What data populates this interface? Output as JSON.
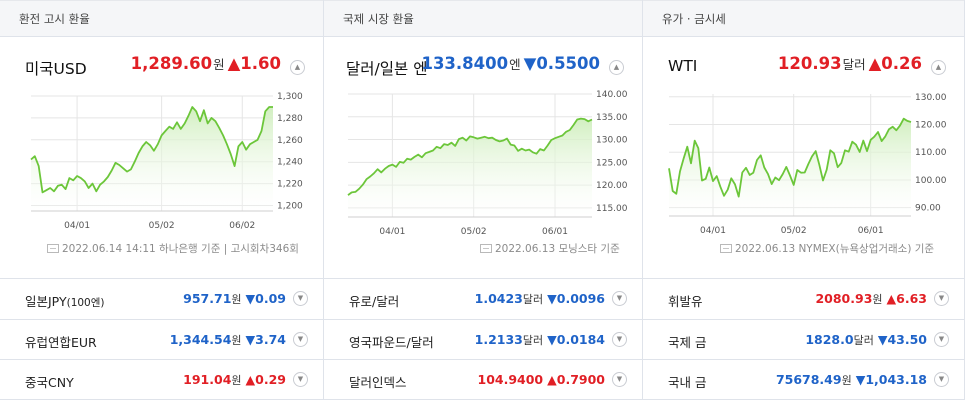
{
  "colors": {
    "up": "#e11f25",
    "down": "#1f63c8",
    "line": "#6cc63a",
    "fill": "#e9f6df",
    "grid": "#e5e5e5"
  },
  "panels": [
    {
      "header": "환전 고시 환율",
      "main": {
        "name": "미국USD",
        "value": "1,289.60",
        "unit": "원",
        "change": "▲1.60",
        "direction": "up"
      },
      "source": "2022.06.14 14:11 하나은행 기준 | 고시회차346회",
      "chart_data": {
        "type": "area",
        "series": [
          {
            "name": "",
            "values": [
              1242,
              1245,
              1236,
              1212,
              1214,
              1216,
              1213,
              1218,
              1219,
              1215,
              1225,
              1223,
              1227,
              1225,
              1222,
              1216,
              1220,
              1213,
              1219,
              1222,
              1226,
              1232,
              1239,
              1237,
              1234,
              1231,
              1233,
              1240,
              1248,
              1254,
              1258,
              1255,
              1250,
              1256,
              1264,
              1268,
              1272,
              1270,
              1276,
              1270,
              1275,
              1282,
              1290,
              1286,
              1277,
              1287,
              1275,
              1280,
              1277,
              1271,
              1264,
              1256,
              1247,
              1236,
              1254,
              1258,
              1251,
              1256,
              1258,
              1260,
              1268,
              1286,
              1290,
              1290
            ]
          }
        ],
        "x_ticks": [
          "04/01",
          "05/02",
          "06/02"
        ],
        "x_tick_index": [
          12,
          34,
          55
        ],
        "y_ticks": [
          "1,300",
          "1,280",
          "1,260",
          "1,240",
          "1,220",
          "1,200"
        ],
        "ylim": [
          1195,
          1300
        ],
        "grid": true
      }
    },
    {
      "header": "국제 시장 환율",
      "main": {
        "name": "달러/일본 엔",
        "value": "133.8400",
        "unit": "엔",
        "change": "▼0.5500",
        "direction": "down"
      },
      "source": "2022.06.13 모닝스타 기준",
      "chart_data": {
        "type": "area",
        "series": [
          {
            "name": "",
            "values": [
              117.8,
              118.4,
              118.5,
              119.2,
              120.1,
              121.3,
              121.9,
              122.6,
              123.5,
              122.8,
              123.6,
              124.2,
              124.5,
              124.0,
              125.1,
              124.9,
              125.8,
              125.6,
              126.2,
              126.7,
              126.1,
              127.0,
              127.3,
              127.6,
              128.4,
              128.1,
              129.0,
              128.8,
              129.3,
              128.6,
              130.1,
              130.4,
              129.8,
              130.7,
              130.5,
              130.2,
              130.4,
              130.6,
              130.3,
              130.4,
              129.9,
              129.6,
              129.8,
              130.2,
              128.9,
              128.7,
              127.5,
              128.0,
              127.6,
              127.8,
              127.2,
              126.9,
              127.9,
              127.6,
              128.7,
              129.9,
              130.3,
              130.6,
              130.9,
              131.7,
              132.1,
              133.2,
              134.4,
              134.6,
              134.5,
              134.0,
              134.4
            ]
          }
        ],
        "x_ticks": [
          "04/01",
          "05/02",
          "06/01"
        ],
        "x_tick_index": [
          12,
          34,
          56
        ],
        "y_ticks": [
          "140.00",
          "135.00",
          "130.00",
          "125.00",
          "120.00",
          "115.00"
        ],
        "ylim": [
          113,
          140
        ],
        "grid": true
      }
    },
    {
      "header": "유가 · 금시세",
      "main": {
        "name": "WTI",
        "value": "120.93",
        "unit": "달러",
        "change": "▲0.26",
        "direction": "up"
      },
      "source": "2022.06.13 NYMEX(뉴욕상업거래소) 기준",
      "chart_data": {
        "type": "area",
        "series": [
          {
            "name": "",
            "values": [
              104.2,
              96.0,
              95.0,
              103.1,
              107.8,
              112.0,
              106.0,
              114.2,
              111.5,
              99.8,
              100.4,
              104.5,
              99.6,
              101.4,
              97.6,
              94.3,
              96.5,
              100.6,
              98.4,
              94.0,
              102.7,
              104.4,
              101.8,
              102.6,
              107.2,
              108.9,
              104.5,
              102.1,
              98.5,
              100.9,
              99.9,
              102.1,
              104.7,
              101.6,
              98.2,
              103.6,
              102.6,
              102.7,
              105.7,
              108.5,
              110.4,
              105.5,
              99.8,
              103.7,
              110.7,
              109.6,
              104.6,
              106.1,
              110.7,
              110.2,
              113.8,
              112.7,
              110.1,
              114.2,
              110.4,
              114.5,
              115.6,
              117.3,
              114.0,
              115.7,
              118.3,
              119.2,
              117.9,
              119.6,
              122.1,
              121.3,
              120.9
            ]
          }
        ],
        "x_ticks": [
          "04/01",
          "05/02",
          "06/01"
        ],
        "x_tick_index": [
          12,
          34,
          55
        ],
        "y_ticks": [
          "130.00",
          "120.00",
          "110.00",
          "100.00",
          "90.00"
        ],
        "ylim": [
          87,
          131
        ],
        "grid": true
      }
    }
  ],
  "rows": [
    [
      {
        "name": "일본JPY",
        "suffix": "(100엔)",
        "value": "957.71",
        "unit": "원",
        "change": "▼0.09",
        "direction": "down"
      },
      {
        "name": "유럽연합EUR",
        "suffix": "",
        "value": "1,344.54",
        "unit": "원",
        "change": "▼3.74",
        "direction": "down"
      },
      {
        "name": "중국CNY",
        "suffix": "",
        "value": "191.04",
        "unit": "원",
        "change": "▲0.29",
        "direction": "up"
      }
    ],
    [
      {
        "name": "유로/달러",
        "suffix": "",
        "value": "1.0423",
        "unit": "달러",
        "change": "▼0.0096",
        "direction": "down"
      },
      {
        "name": "영국파운드/달러",
        "suffix": "",
        "value": "1.2133",
        "unit": "달러",
        "change": "▼0.0184",
        "direction": "down"
      },
      {
        "name": "달러인덱스",
        "suffix": "",
        "value": "104.9400",
        "unit": "",
        "change": "▲0.7900",
        "direction": "up"
      }
    ],
    [
      {
        "name": "휘발유",
        "suffix": "",
        "value": "2080.93",
        "unit": "원",
        "change": "▲6.63",
        "direction": "up"
      },
      {
        "name": "국제 금",
        "suffix": "",
        "value": "1828.0",
        "unit": "달러",
        "change": "▼43.50",
        "direction": "down"
      },
      {
        "name": "국내 금",
        "suffix": "",
        "value": "75678.49",
        "unit": "원",
        "change": "▼1,043.18",
        "direction": "down"
      }
    ]
  ],
  "icons": {
    "expand": "chevron-up-icon",
    "row": "chevron-down-icon",
    "source": "document-icon"
  }
}
